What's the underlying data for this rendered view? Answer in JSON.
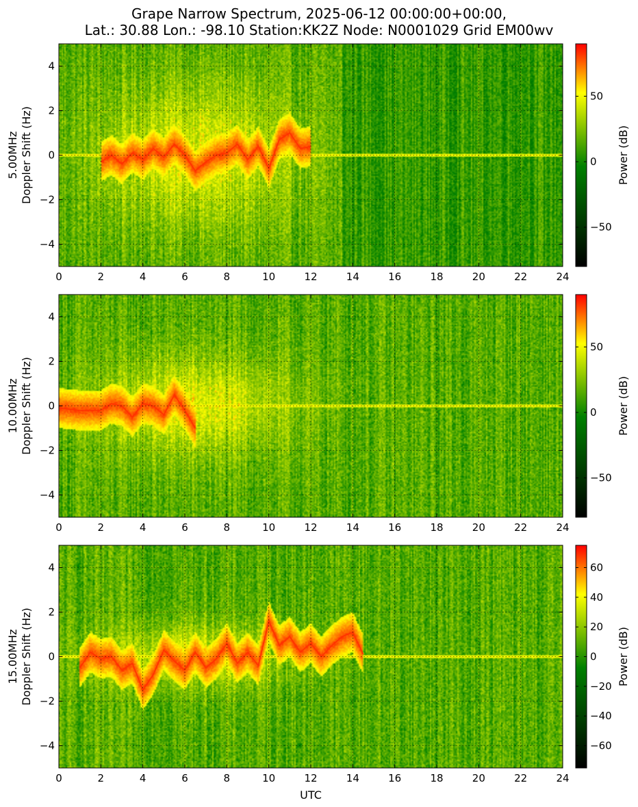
{
  "title": {
    "line1": "Grape Narrow Spectrum, 2025-06-12 00:00:00+00:00,",
    "line2": "Lat.: 30.88 Lon.: -98.10 Station:KK2Z Node: N0001029 Grid EM00wv"
  },
  "colors": {
    "dark": "#000000",
    "green": "#008000",
    "yellow": "#ffff00",
    "red": "#ff0000",
    "grid": "#000000"
  },
  "chart_data": [
    {
      "type": "heatmap",
      "ylabel_line1": "5.00MHz",
      "ylabel_line2": "Doppler Shift (Hz)",
      "xlabel": "",
      "xlim": [
        0,
        24
      ],
      "ylim": [
        -5,
        5
      ],
      "x_ticks": [
        "0",
        "2",
        "4",
        "6",
        "8",
        "10",
        "12",
        "14",
        "16",
        "18",
        "20",
        "22",
        "24"
      ],
      "y_ticks": [
        "4",
        "2",
        "0",
        "−2",
        "−4"
      ],
      "y_tick_values": [
        4,
        2,
        0,
        -2,
        -4
      ],
      "grid": true,
      "colorbar": {
        "label": "Power (dB)",
        "range": [
          -80,
          90
        ],
        "ticks": [
          "50",
          "0",
          "−50"
        ],
        "tick_values": [
          50,
          0,
          -50
        ]
      },
      "activity_x_range": [
        0,
        13.5
      ],
      "carrier_freq_hz": 0,
      "doppler_trace": [
        [
          2.0,
          -0.3
        ],
        [
          2.5,
          0.0
        ],
        [
          3.0,
          -0.4
        ],
        [
          3.5,
          0.1
        ],
        [
          4.0,
          -0.2
        ],
        [
          4.5,
          0.3
        ],
        [
          5.0,
          -0.1
        ],
        [
          5.5,
          0.5
        ],
        [
          6.0,
          0.0
        ],
        [
          6.5,
          -0.7
        ],
        [
          7.0,
          -0.3
        ],
        [
          7.5,
          0.0
        ],
        [
          8.0,
          0.1
        ],
        [
          8.5,
          0.5
        ],
        [
          9.0,
          -0.2
        ],
        [
          9.5,
          0.4
        ],
        [
          10.0,
          -0.6
        ],
        [
          10.5,
          0.7
        ],
        [
          11.0,
          1.0
        ],
        [
          11.5,
          0.3
        ],
        [
          12.0,
          0.4
        ]
      ]
    },
    {
      "type": "heatmap",
      "ylabel_line1": "10.00MHz",
      "ylabel_line2": "Doppler Shift (Hz)",
      "xlabel": "",
      "xlim": [
        0,
        24
      ],
      "ylim": [
        -5,
        5
      ],
      "x_ticks": [
        "0",
        "2",
        "4",
        "6",
        "8",
        "10",
        "12",
        "14",
        "16",
        "18",
        "20",
        "22",
        "24"
      ],
      "y_ticks": [
        "4",
        "2",
        "0",
        "−2",
        "−4"
      ],
      "y_tick_values": [
        4,
        2,
        0,
        -2,
        -4
      ],
      "grid": true,
      "colorbar": {
        "label": "Power (dB)",
        "range": [
          -80,
          90
        ],
        "ticks": [
          "50",
          "0",
          "−50"
        ],
        "tick_values": [
          50,
          0,
          -50
        ]
      },
      "activity_x_range": [
        0,
        24
      ],
      "carrier_freq_hz": 0,
      "doppler_trace": [
        [
          0.0,
          -0.1
        ],
        [
          1.0,
          -0.2
        ],
        [
          2.0,
          -0.2
        ],
        [
          2.5,
          0.1
        ],
        [
          3.0,
          0.0
        ],
        [
          3.5,
          -0.5
        ],
        [
          4.0,
          0.1
        ],
        [
          4.5,
          0.0
        ],
        [
          5.0,
          -0.4
        ],
        [
          5.5,
          0.5
        ],
        [
          6.0,
          -0.2
        ],
        [
          6.5,
          -1.0
        ]
      ]
    },
    {
      "type": "heatmap",
      "ylabel_line1": "15.00MHz",
      "ylabel_line2": "Doppler Shift (Hz)",
      "xlabel": "UTC",
      "xlim": [
        0,
        24
      ],
      "ylim": [
        -5,
        5
      ],
      "x_ticks": [
        "0",
        "2",
        "4",
        "6",
        "8",
        "10",
        "12",
        "14",
        "16",
        "18",
        "20",
        "22",
        "24"
      ],
      "y_ticks": [
        "4",
        "2",
        "0",
        "−2",
        "−4"
      ],
      "y_tick_values": [
        4,
        2,
        0,
        -2,
        -4
      ],
      "grid": true,
      "colorbar": {
        "label": "Power (dB)",
        "range": [
          -75,
          75
        ],
        "ticks": [
          "60",
          "40",
          "20",
          "0",
          "−20",
          "−40",
          "−60"
        ],
        "tick_values": [
          60,
          40,
          20,
          0,
          -20,
          -40,
          -60
        ]
      },
      "activity_x_range": [
        0,
        24
      ],
      "carrier_freq_hz": 0,
      "doppler_trace": [
        [
          1.0,
          -0.5
        ],
        [
          1.5,
          0.2
        ],
        [
          2.0,
          -0.1
        ],
        [
          2.5,
          0.0
        ],
        [
          3.0,
          -0.6
        ],
        [
          3.5,
          -0.3
        ],
        [
          4.0,
          -1.5
        ],
        [
          4.5,
          -0.8
        ],
        [
          5.0,
          0.3
        ],
        [
          5.5,
          -0.2
        ],
        [
          6.0,
          -0.6
        ],
        [
          6.5,
          0.2
        ],
        [
          7.0,
          -0.5
        ],
        [
          7.5,
          -0.1
        ],
        [
          8.0,
          0.6
        ],
        [
          8.5,
          -0.3
        ],
        [
          9.0,
          0.2
        ],
        [
          9.5,
          -0.4
        ],
        [
          10.0,
          1.6
        ],
        [
          10.5,
          0.5
        ],
        [
          11.0,
          0.9
        ],
        [
          11.5,
          0.2
        ],
        [
          12.0,
          0.6
        ],
        [
          12.5,
          0.0
        ],
        [
          13.0,
          0.5
        ],
        [
          13.5,
          0.9
        ],
        [
          14.0,
          1.1
        ],
        [
          14.5,
          0.1
        ]
      ]
    }
  ]
}
